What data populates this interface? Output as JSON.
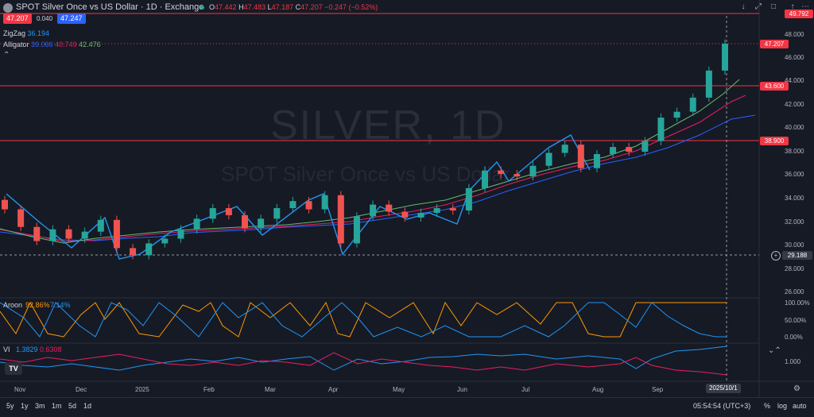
{
  "header": {
    "title": "SPOT Silver Once vs US Dollar · 1D · Exchange",
    "ohlc": [
      {
        "label": "O",
        "value": "47.442"
      },
      {
        "label": "H",
        "value": "47.483"
      },
      {
        "label": "L",
        "value": "47.187"
      },
      {
        "label": "C",
        "value": "47.207"
      }
    ],
    "change": "−0.247 (−0.52%)",
    "sell_price": "47.207",
    "spread": "0.040",
    "buy_price": "47.247"
  },
  "indicators": {
    "zigzag": {
      "name": "ZigZag",
      "value": "36.194"
    },
    "alligator": {
      "name": "Alligator",
      "values": [
        "39.066",
        "40.749",
        "42.476"
      ]
    },
    "aroon": {
      "name": "Aroon",
      "values": [
        "92.86%",
        "7.14%"
      ]
    },
    "vi": {
      "name": "VI",
      "values": [
        "1.3829",
        "0.6308"
      ]
    }
  },
  "watermark": {
    "symbol": "SILVER, 1D",
    "description": "SPOT Silver Once vs US Dollar"
  },
  "price_axis": {
    "labels": [
      "48.000",
      "46.000",
      "44.000",
      "42.000",
      "40.000",
      "38.000",
      "36.000",
      "34.000",
      "32.000",
      "30.000",
      "28.000",
      "26.000"
    ],
    "tags": {
      "top_line": "49.792",
      "current": "47.207",
      "line_upper": "43.600",
      "line_lower": "38.900",
      "crosshair": "29.188"
    }
  },
  "aroon_axis": [
    "100.00%",
    "50.00%",
    "0.00%"
  ],
  "vi_axis": [
    "1.000"
  ],
  "time_axis": {
    "months": [
      "Nov",
      "Dec",
      "2025",
      "Feb",
      "Mar",
      "Apr",
      "May",
      "Jun",
      "Jul",
      "Aug",
      "Sep"
    ],
    "crosshair_date": "2025/10/1"
  },
  "bottom_bar": {
    "ranges": [
      "5y",
      "1y",
      "3m",
      "1m",
      "5d",
      "1d"
    ],
    "clock": "05:54:54 (UTC+3)",
    "percent": "%",
    "log": "log",
    "auto": "auto"
  },
  "colors": {
    "up": "#26a69a",
    "down": "#ef5350",
    "zigzag": "#2196f3",
    "jaw": "#2962ff",
    "teeth": "#e91e63",
    "lips": "#66bb6a",
    "aroon_up": "#ff9800",
    "aroon_down": "#2196f3",
    "vi_plus": "#2196f3",
    "vi_minus": "#e91e63",
    "hline": "#f23645"
  },
  "chart_data": {
    "type": "candlestick",
    "x_range": [
      "2024-10-21",
      "2025-10-01"
    ],
    "ylim": [
      26,
      50
    ],
    "horizontal_lines": [
      49.792,
      43.6,
      38.9
    ],
    "candles_weekly_approx": [
      {
        "o": 33.9,
        "c": 33.1
      },
      {
        "o": 33.1,
        "c": 31.6
      },
      {
        "o": 31.6,
        "c": 30.4
      },
      {
        "o": 30.4,
        "c": 31.4
      },
      {
        "o": 31.4,
        "c": 30.6
      },
      {
        "o": 30.6,
        "c": 31.2
      },
      {
        "o": 31.2,
        "c": 32.2
      },
      {
        "o": 32.2,
        "c": 29.8
      },
      {
        "o": 29.8,
        "c": 29.2
      },
      {
        "o": 29.2,
        "c": 30.2
      },
      {
        "o": 30.2,
        "c": 30.6
      },
      {
        "o": 30.6,
        "c": 31.4
      },
      {
        "o": 31.4,
        "c": 32.3
      },
      {
        "o": 32.3,
        "c": 33.2
      },
      {
        "o": 33.2,
        "c": 32.6
      },
      {
        "o": 32.6,
        "c": 31.5
      },
      {
        "o": 31.5,
        "c": 32.3
      },
      {
        "o": 32.3,
        "c": 33.2
      },
      {
        "o": 33.2,
        "c": 33.8
      },
      {
        "o": 33.8,
        "c": 33.1
      },
      {
        "o": 33.1,
        "c": 34.3
      },
      {
        "o": 34.3,
        "c": 30.2
      },
      {
        "o": 30.2,
        "c": 32.5
      },
      {
        "o": 32.5,
        "c": 33.5
      },
      {
        "o": 33.5,
        "c": 32.9
      },
      {
        "o": 32.9,
        "c": 32.4
      },
      {
        "o": 32.4,
        "c": 32.8
      },
      {
        "o": 32.8,
        "c": 33.2
      },
      {
        "o": 33.2,
        "c": 33.0
      },
      {
        "o": 33.0,
        "c": 34.9
      },
      {
        "o": 34.9,
        "c": 36.4
      },
      {
        "o": 36.4,
        "c": 36.1
      },
      {
        "o": 36.1,
        "c": 35.9
      },
      {
        "o": 35.9,
        "c": 36.8
      },
      {
        "o": 36.8,
        "c": 37.9
      },
      {
        "o": 37.9,
        "c": 38.6
      },
      {
        "o": 38.6,
        "c": 36.6
      },
      {
        "o": 36.6,
        "c": 37.8
      },
      {
        "o": 37.8,
        "c": 38.4
      },
      {
        "o": 38.4,
        "c": 38.0
      },
      {
        "o": 38.0,
        "c": 38.9
      },
      {
        "o": 38.9,
        "c": 40.9
      },
      {
        "o": 40.9,
        "c": 41.4
      },
      {
        "o": 41.4,
        "c": 42.6
      },
      {
        "o": 42.6,
        "c": 44.9
      },
      {
        "o": 44.9,
        "c": 47.2
      }
    ],
    "zigzag_points": [
      {
        "x": "Oct",
        "y": 33.9
      },
      {
        "x": "Nov",
        "y": 31.0
      },
      {
        "x": "Nov",
        "y": 32.9
      },
      {
        "x": "Dec",
        "y": 29.3
      },
      {
        "x": "Jan",
        "y": 30.3
      },
      {
        "x": "Jan",
        "y": 33.5
      },
      {
        "x": "Feb",
        "y": 31.4
      },
      {
        "x": "Mar",
        "y": 34.0
      },
      {
        "x": "Mar",
        "y": 33.4
      },
      {
        "x": "Apr",
        "y": 34.6
      },
      {
        "x": "Apr",
        "y": 29.1
      },
      {
        "x": "Apr",
        "y": 33.4
      },
      {
        "x": "May",
        "y": 32.3
      },
      {
        "x": "May",
        "y": 33.2
      },
      {
        "x": "May",
        "y": 31.9
      },
      {
        "x": "Jun",
        "y": 35.1
      },
      {
        "x": "Jun",
        "y": 36.8
      },
      {
        "x": "Jun",
        "y": 35.5
      },
      {
        "x": "Jul",
        "y": 37.3
      },
      {
        "x": "Jul",
        "y": 39.5
      },
      {
        "x": "Jul",
        "y": 36.2
      }
    ],
    "alligator": {
      "jaw": [
        31.2,
        30.9,
        30.6,
        30.6,
        30.8,
        31.0,
        31.4,
        31.7,
        31.9,
        32.1,
        32.2,
        32.4,
        32.9,
        33.6,
        34.3,
        35.0,
        35.9,
        36.5,
        37.1,
        37.6,
        38.1,
        39.0,
        40.6
      ],
      "teeth": [
        31.4,
        30.8,
        30.5,
        30.7,
        31.0,
        31.5,
        31.9,
        32.2,
        32.3,
        32.4,
        32.7,
        33.2,
        34.0,
        34.9,
        35.6,
        36.5,
        37.2,
        37.5,
        37.9,
        38.5,
        39.6,
        40.9,
        42.3
      ],
      "lips": [
        31.3,
        30.6,
        30.4,
        30.9,
        31.4,
        32.0,
        32.4,
        32.5,
        32.6,
        32.8,
        33.2,
        33.9,
        34.8,
        35.8,
        36.3,
        37.3,
        37.7,
        38.0,
        38.6,
        39.4,
        40.6,
        42.0,
        43.9
      ]
    },
    "aroon": {
      "ylim": [
        0,
        100
      ],
      "up_last": 92.86,
      "down_last": 7.14
    },
    "vi": {
      "plus_last": 1.3829,
      "minus_last": 0.6308
    }
  }
}
